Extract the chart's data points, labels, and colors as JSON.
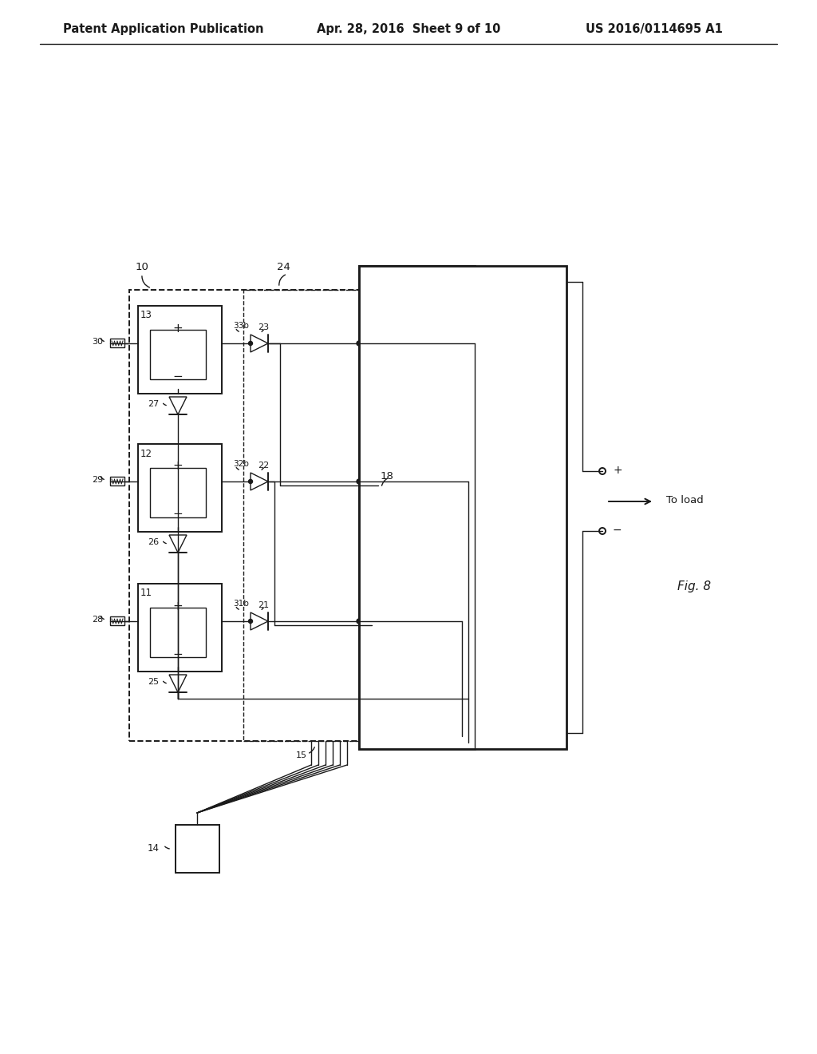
{
  "bg_color": "#ffffff",
  "line_color": "#1a1a1a",
  "header_left": "Patent Application Publication",
  "header_mid": "Apr. 28, 2016  Sheet 9 of 10",
  "header_right": "US 2016/0114695 A1",
  "fig_label": "Fig. 8",
  "header_fontsize": 10.5,
  "body_fontsize": 8.5,
  "fig_fontsize": 11
}
